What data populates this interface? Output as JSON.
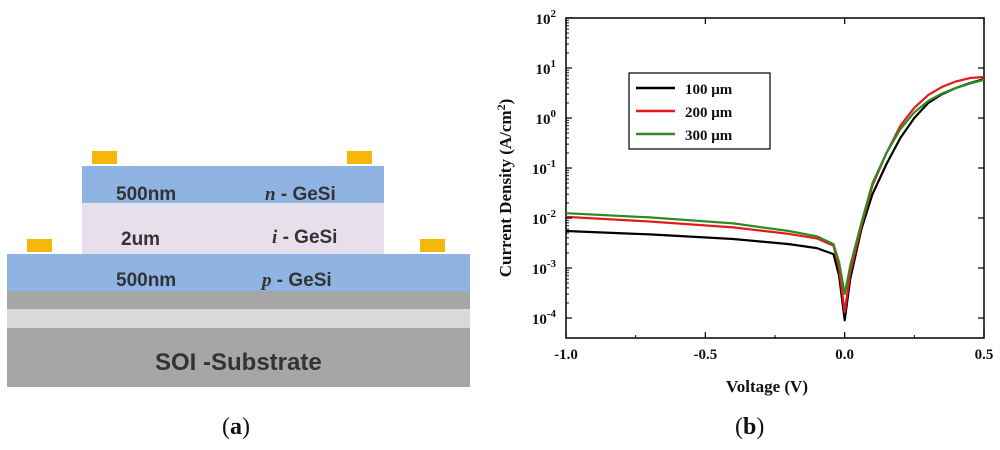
{
  "diagram": {
    "caption_letter": "a",
    "layers": {
      "n_thickness": "500nm",
      "n_letter": "n",
      "n_material": "- GeSi",
      "i_thickness": "2um",
      "i_letter": "i",
      "i_material": "- GeSi",
      "p_thickness": "500nm",
      "p_letter": "p",
      "p_material": "- GeSi",
      "substrate": "SOI -Substrate"
    },
    "colors": {
      "doped": "#8fb4e3",
      "intrinsic": "#e6e0ec",
      "oxide": "#d9d9d9",
      "silicon": "#a6a6a6",
      "contact": "#f5b80a"
    }
  },
  "chart_caption_letter": "b",
  "chart_data": {
    "type": "line",
    "title": "",
    "xlabel": "Voltage (V)",
    "ylabel": "Current Density (A/cm",
    "ylabel_sup": "2",
    "ylabel_end": ")",
    "xlim": [
      -1.0,
      0.5
    ],
    "ylim_log10": [
      -4.4,
      2
    ],
    "yscale": "log",
    "x_ticks": [
      "-1.0",
      "-0.5",
      "0.0",
      "0.5"
    ],
    "x_tick_values": [
      -1.0,
      -0.5,
      0.0,
      0.5
    ],
    "y_ticks_exp": [
      "-4",
      "-3",
      "-2",
      "-1",
      "0",
      "1",
      "2"
    ],
    "y_tick_base": "10",
    "legend": {
      "position": "top-left",
      "entries": [
        "100 μm",
        "200 μm",
        "300 μm"
      ]
    },
    "series": [
      {
        "name": "100 μm",
        "color": "#000000",
        "points": [
          [
            -1.0,
            0.0055
          ],
          [
            -0.7,
            0.0047
          ],
          [
            -0.4,
            0.0038
          ],
          [
            -0.2,
            0.003
          ],
          [
            -0.1,
            0.0025
          ],
          [
            -0.04,
            0.0019
          ],
          [
            -0.02,
            0.0007
          ],
          [
            0.0,
            9e-05
          ],
          [
            0.02,
            0.0006
          ],
          [
            0.06,
            0.006
          ],
          [
            0.1,
            0.03
          ],
          [
            0.15,
            0.12
          ],
          [
            0.2,
            0.4
          ],
          [
            0.25,
            1.0
          ],
          [
            0.3,
            2.0
          ],
          [
            0.35,
            3.0
          ],
          [
            0.4,
            4.0
          ],
          [
            0.45,
            5.0
          ],
          [
            0.5,
            6.0
          ]
        ]
      },
      {
        "name": "200 μm",
        "color": "#e41a1c",
        "points": [
          [
            -1.0,
            0.0105
          ],
          [
            -0.7,
            0.0085
          ],
          [
            -0.4,
            0.0065
          ],
          [
            -0.2,
            0.0048
          ],
          [
            -0.1,
            0.0039
          ],
          [
            -0.04,
            0.0028
          ],
          [
            -0.02,
            0.001
          ],
          [
            0.0,
            0.00013
          ],
          [
            0.02,
            0.0008
          ],
          [
            0.06,
            0.007
          ],
          [
            0.1,
            0.045
          ],
          [
            0.15,
            0.2
          ],
          [
            0.2,
            0.7
          ],
          [
            0.25,
            1.6
          ],
          [
            0.3,
            2.9
          ],
          [
            0.35,
            4.2
          ],
          [
            0.4,
            5.4
          ],
          [
            0.45,
            6.3
          ],
          [
            0.5,
            6.6
          ]
        ]
      },
      {
        "name": "300 μm",
        "color": "#2e8b22",
        "points": [
          [
            -1.0,
            0.0125
          ],
          [
            -0.7,
            0.0103
          ],
          [
            -0.4,
            0.0078
          ],
          [
            -0.2,
            0.0055
          ],
          [
            -0.1,
            0.0043
          ],
          [
            -0.04,
            0.003
          ],
          [
            -0.02,
            0.0013
          ],
          [
            0.0,
            0.0003
          ],
          [
            0.02,
            0.0011
          ],
          [
            0.06,
            0.008
          ],
          [
            0.1,
            0.05
          ],
          [
            0.15,
            0.2
          ],
          [
            0.2,
            0.6
          ],
          [
            0.25,
            1.3
          ],
          [
            0.3,
            2.2
          ],
          [
            0.35,
            3.1
          ],
          [
            0.4,
            4.0
          ],
          [
            0.45,
            4.9
          ],
          [
            0.5,
            5.8
          ]
        ]
      }
    ]
  }
}
